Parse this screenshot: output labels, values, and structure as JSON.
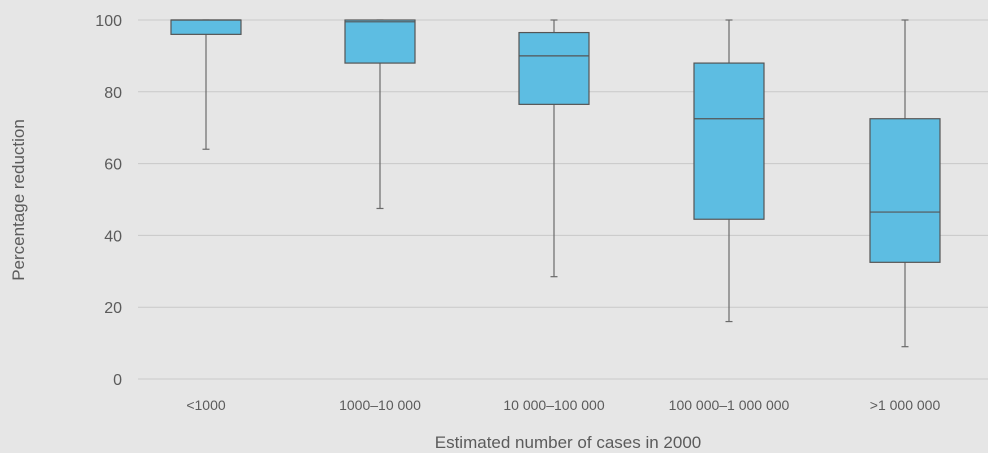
{
  "chart_data": {
    "type": "box",
    "xlabel": "Estimated number of cases in 2000",
    "ylabel": "Percentage reduction",
    "ylim": [
      0,
      100
    ],
    "yticks": [
      0,
      20,
      40,
      60,
      80,
      100
    ],
    "grid": true,
    "categories": [
      "<1000",
      "1000–10 000",
      "10 000–100 000",
      "100 000–1 000 000",
      ">1 000 000"
    ],
    "boxes": [
      {
        "category": "<1000",
        "min": 64,
        "q1": 96,
        "median": 100,
        "q3": 100,
        "max": 100
      },
      {
        "category": "1000–10 000",
        "min": 47.5,
        "q1": 88,
        "median": 99.5,
        "q3": 100,
        "max": 100
      },
      {
        "category": "10 000–100 000",
        "min": 28.5,
        "q1": 76.5,
        "median": 90,
        "q3": 96.5,
        "max": 100
      },
      {
        "category": "100 000–1 000 000",
        "min": 16,
        "q1": 44.5,
        "median": 72.5,
        "q3": 88,
        "max": 100
      },
      {
        "category": ">1 000 000",
        "min": 9,
        "q1": 32.5,
        "median": 46.5,
        "q3": 72.5,
        "max": 100
      }
    ],
    "colors": {
      "background": "#e6e6e6",
      "box_fill": "#5dbde2",
      "box_stroke": "#555555",
      "grid": "#c9c9c9",
      "text": "#5b5b5b"
    }
  }
}
